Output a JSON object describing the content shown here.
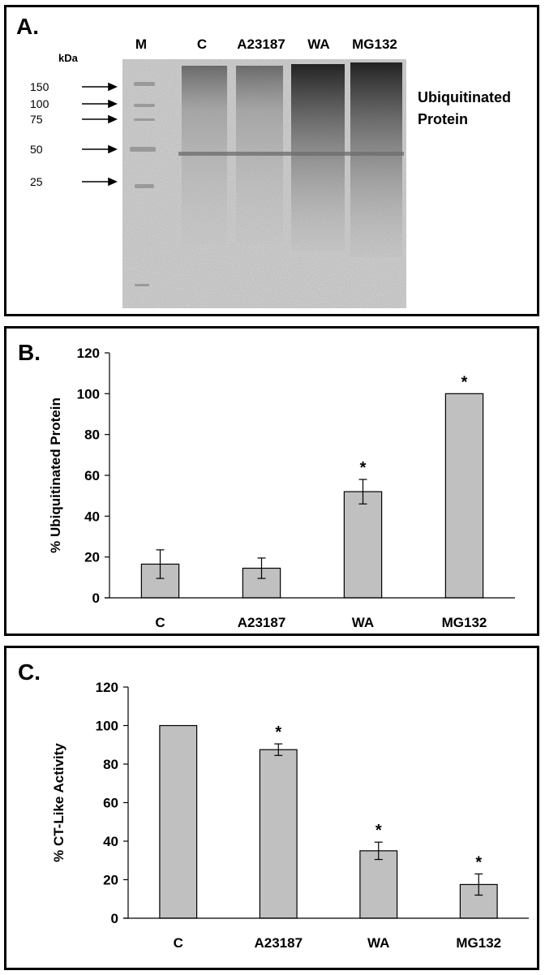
{
  "panelA": {
    "label": "A.",
    "lane_labels": [
      "M",
      "C",
      "A23187",
      "WA",
      "MG132"
    ],
    "unit_label": "kDa",
    "markers": [
      "150",
      "100",
      "75",
      "50",
      "25"
    ],
    "annotation_line1": "Ubiquitinated",
    "annotation_line2": "Protein"
  },
  "panelB": {
    "label": "B."
  },
  "panelC": {
    "label": "C."
  },
  "colors": {
    "bar_fill": "#c0c0c0",
    "bar_stroke": "#000000",
    "axis": "#000000"
  },
  "chart_data": [
    {
      "type": "bar",
      "title": "",
      "xlabel": "",
      "ylabel": "% Ubiquitinated Protein",
      "categories": [
        "C",
        "A23187",
        "WA",
        "MG132"
      ],
      "values": [
        16.5,
        14.5,
        52,
        100
      ],
      "errors": [
        7,
        5,
        6,
        0
      ],
      "significance": [
        "",
        "",
        "*",
        "*"
      ],
      "ylim": [
        0,
        120
      ],
      "yticks": [
        0,
        20,
        40,
        60,
        80,
        100,
        120
      ],
      "grid": false
    },
    {
      "type": "bar",
      "title": "",
      "xlabel": "",
      "ylabel": "% CT-Like Activity",
      "categories": [
        "C",
        "A23187",
        "WA",
        "MG132"
      ],
      "values": [
        100,
        87.5,
        35,
        17.5
      ],
      "errors": [
        0,
        3,
        4.5,
        5.5
      ],
      "significance": [
        "",
        "*",
        "*",
        "*"
      ],
      "ylim": [
        0,
        120
      ],
      "yticks": [
        0,
        20,
        40,
        60,
        80,
        100,
        120
      ],
      "grid": false
    }
  ]
}
